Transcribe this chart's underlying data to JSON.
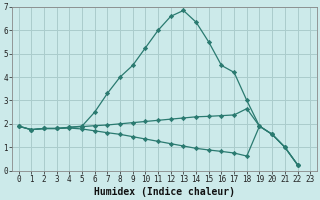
{
  "xlabel": "Humidex (Indice chaleur)",
  "background_color": "#cceaea",
  "grid_color": "#aacccc",
  "line_color": "#2a7a70",
  "xlim": [
    -0.5,
    23.5
  ],
  "ylim": [
    0,
    7
  ],
  "xticks": [
    0,
    1,
    2,
    3,
    4,
    5,
    6,
    7,
    8,
    9,
    10,
    11,
    12,
    13,
    14,
    15,
    16,
    17,
    18,
    19,
    20,
    21,
    22,
    23
  ],
  "yticks": [
    0,
    1,
    2,
    3,
    4,
    5,
    6,
    7
  ],
  "line1_x": [
    0,
    1,
    2,
    3,
    4,
    5,
    6,
    7,
    8,
    9,
    10,
    11,
    12,
    13,
    14,
    15,
    16,
    17,
    18,
    19,
    20,
    21,
    22
  ],
  "line1_y": [
    1.9,
    1.75,
    1.8,
    1.8,
    1.85,
    1.9,
    2.5,
    3.3,
    4.0,
    4.5,
    5.25,
    6.0,
    6.6,
    6.85,
    6.35,
    5.5,
    4.5,
    4.2,
    3.0,
    1.9,
    1.55,
    1.0,
    0.25
  ],
  "line2_x": [
    0,
    1,
    2,
    3,
    4,
    5,
    6,
    7,
    8,
    9,
    10,
    11,
    12,
    13,
    14,
    15,
    16,
    17,
    18,
    19,
    20,
    21,
    22
  ],
  "line2_y": [
    1.9,
    1.75,
    1.8,
    1.8,
    1.85,
    1.88,
    1.92,
    1.95,
    2.0,
    2.05,
    2.1,
    2.15,
    2.2,
    2.25,
    2.3,
    2.32,
    2.35,
    2.38,
    2.65,
    1.9,
    1.55,
    1.0,
    0.25
  ],
  "line3_x": [
    0,
    1,
    2,
    3,
    4,
    5,
    6,
    7,
    8,
    9,
    10,
    11,
    12,
    13,
    14,
    15,
    16,
    17,
    18,
    19,
    20,
    21,
    22
  ],
  "line3_y": [
    1.9,
    1.75,
    1.8,
    1.8,
    1.82,
    1.78,
    1.7,
    1.62,
    1.55,
    1.45,
    1.35,
    1.25,
    1.15,
    1.05,
    0.95,
    0.88,
    0.82,
    0.75,
    0.62,
    1.9,
    1.55,
    1.0,
    0.25
  ]
}
